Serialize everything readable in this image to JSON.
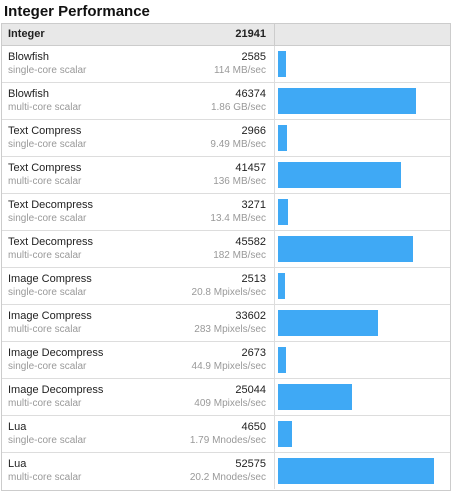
{
  "section": {
    "title": "Integer Performance"
  },
  "header": {
    "name": "Integer",
    "score": "21941"
  },
  "colors": {
    "bar": "#3fa9f5"
  },
  "max_score": 52575,
  "rows": [
    {
      "name": "Blowfish",
      "kind": "single-core scalar",
      "score": "2585",
      "rate": "114 MB/sec",
      "value": 2585
    },
    {
      "name": "Blowfish",
      "kind": "multi-core scalar",
      "score": "46374",
      "rate": "1.86 GB/sec",
      "value": 46374
    },
    {
      "name": "Text Compress",
      "kind": "single-core scalar",
      "score": "2966",
      "rate": "9.49 MB/sec",
      "value": 2966
    },
    {
      "name": "Text Compress",
      "kind": "multi-core scalar",
      "score": "41457",
      "rate": "136 MB/sec",
      "value": 41457
    },
    {
      "name": "Text Decompress",
      "kind": "single-core scalar",
      "score": "3271",
      "rate": "13.4 MB/sec",
      "value": 3271
    },
    {
      "name": "Text Decompress",
      "kind": "multi-core scalar",
      "score": "45582",
      "rate": "182 MB/sec",
      "value": 45582
    },
    {
      "name": "Image Compress",
      "kind": "single-core scalar",
      "score": "2513",
      "rate": "20.8 Mpixels/sec",
      "value": 2513
    },
    {
      "name": "Image Compress",
      "kind": "multi-core scalar",
      "score": "33602",
      "rate": "283 Mpixels/sec",
      "value": 33602
    },
    {
      "name": "Image Decompress",
      "kind": "single-core scalar",
      "score": "2673",
      "rate": "44.9 Mpixels/sec",
      "value": 2673
    },
    {
      "name": "Image Decompress",
      "kind": "multi-core scalar",
      "score": "25044",
      "rate": "409 Mpixels/sec",
      "value": 25044
    },
    {
      "name": "Lua",
      "kind": "single-core scalar",
      "score": "4650",
      "rate": "1.79 Mnodes/sec",
      "value": 4650
    },
    {
      "name": "Lua",
      "kind": "multi-core scalar",
      "score": "52575",
      "rate": "20.2 Mnodes/sec",
      "value": 52575
    }
  ]
}
